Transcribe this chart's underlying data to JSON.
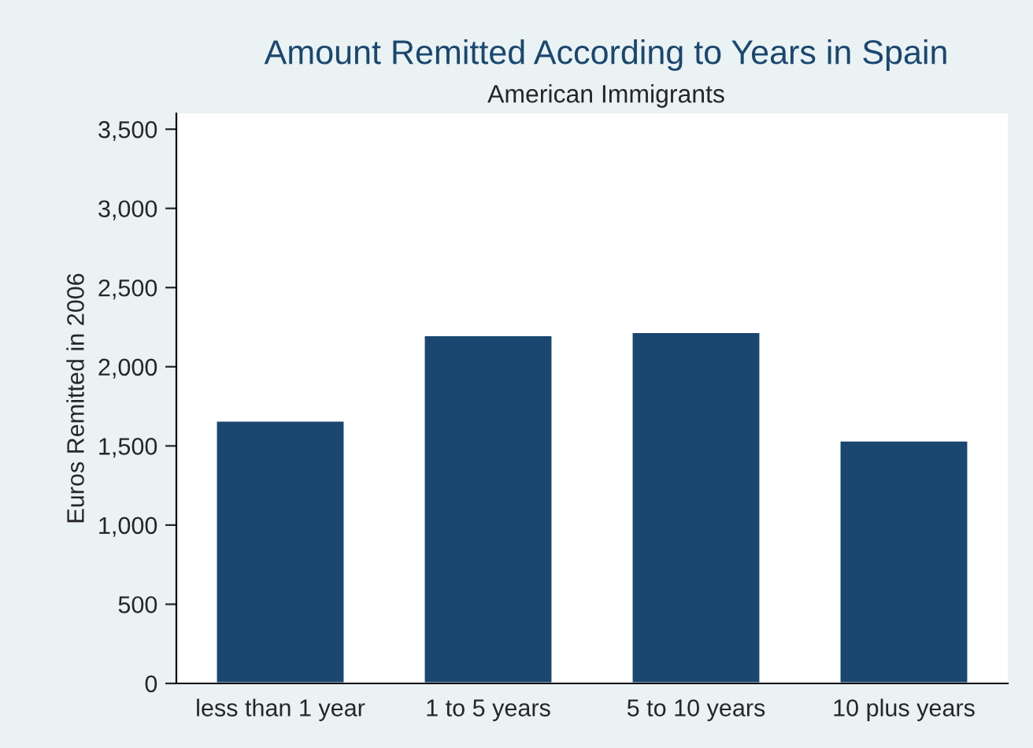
{
  "chart_data": {
    "type": "bar",
    "title": "Amount Remitted According to Years in Spain",
    "subtitle": "American Immigrants",
    "ylabel": "Euros Remitted in 2006",
    "categories": [
      "less than 1 year",
      "1 to 5 years",
      "5 to 10 years",
      "10 plus years"
    ],
    "values": [
      1660,
      2200,
      2220,
      1535
    ],
    "color": "#1a476f",
    "ylim": [
      0,
      3600
    ],
    "yticks": [
      {
        "value": 0,
        "label": "0"
      },
      {
        "value": 500,
        "label": "500"
      },
      {
        "value": 1000,
        "label": "1,000"
      },
      {
        "value": 1500,
        "label": "1,500"
      },
      {
        "value": 2000,
        "label": "2,000"
      },
      {
        "value": 2500,
        "label": "2,500"
      },
      {
        "value": 3000,
        "label": "3,000"
      },
      {
        "value": 3500,
        "label": "3,500"
      }
    ],
    "grid": false
  }
}
